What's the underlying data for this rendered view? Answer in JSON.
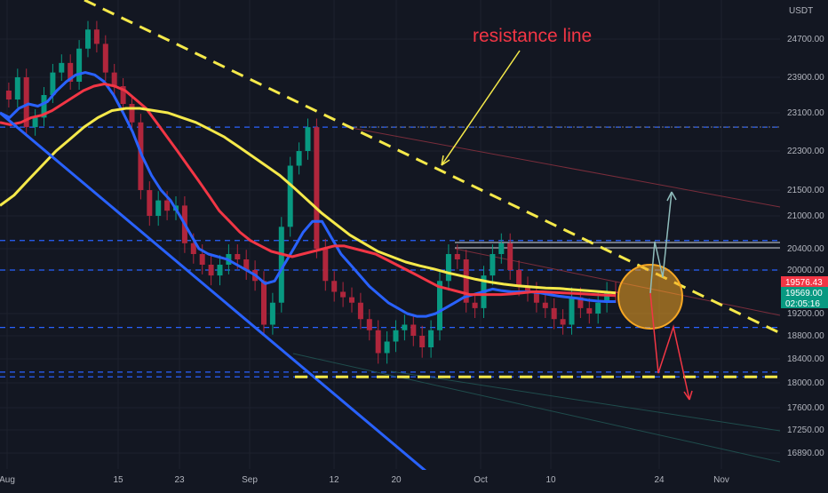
{
  "chart_data": {
    "type": "candlestick",
    "currency_label": "USDT",
    "annotation": {
      "text": "resistance line",
      "color": "#f23645"
    },
    "y_ticks": [
      24700,
      23900,
      23100,
      22300,
      21500,
      21000,
      20400,
      20000,
      19200,
      18800,
      18400,
      18000,
      17600,
      17250,
      16890
    ],
    "y_tick_labels": [
      "24700.00",
      "23900.00",
      "23100.00",
      "22300.00",
      "21500.00",
      "21000.00",
      "20400.00",
      "20000.00",
      "19200.00",
      "18800.00",
      "18400.00",
      "18000.00",
      "17600.00",
      "17250.00",
      "16890.00"
    ],
    "x_ticks": [
      "Aug",
      "15",
      "23",
      "Sep",
      "12",
      "20",
      "Oct",
      "10",
      "24",
      "Nov"
    ],
    "price_badges": [
      {
        "label": "19576.43",
        "value": 19576.43,
        "color": "#f23645"
      },
      {
        "label": "19569.00",
        "value": 19569.0,
        "color": "#089981"
      },
      {
        "label": "02:05:16",
        "value": 19430,
        "color": "#089981"
      }
    ],
    "horizontal_levels": [
      {
        "value": 22800,
        "style": "dashed",
        "color": "#2962ff"
      },
      {
        "value": 20550,
        "style": "dashed",
        "color": "#2962ff"
      },
      {
        "value": 20000,
        "style": "dashed",
        "color": "#2962ff"
      },
      {
        "value": 18950,
        "style": "dashed",
        "color": "#2962ff"
      },
      {
        "value": 18180,
        "style": "dashed",
        "color": "#2962ff"
      },
      {
        "value": 18100,
        "style": "dashed",
        "color": "#2962ff"
      }
    ],
    "price_series": [
      23600,
      23400,
      23900,
      22800,
      23000,
      23500,
      24000,
      24200,
      23800,
      24500,
      24900,
      24600,
      24000,
      23700,
      23300,
      22900,
      21500,
      21000,
      21300,
      21100,
      21200,
      20500,
      20300,
      20100,
      19900,
      20100,
      20300,
      20200,
      20000,
      19800,
      19000,
      19400,
      20800,
      22000,
      22300,
      22800,
      20400,
      19800,
      19600,
      19500,
      19400,
      19100,
      18900,
      18500,
      18700,
      18900,
      19000,
      18800,
      18600,
      18900,
      19800,
      20300,
      20200,
      19400,
      19300,
      19900,
      20300,
      20500,
      20000,
      19700,
      19600,
      19400,
      19300,
      19100,
      19000,
      19500,
      19300,
      19200,
      19400,
      19600,
      19576
    ],
    "moving_averages": [
      {
        "name": "",
        "color": "#2962ff",
        "values": [
          23100,
          23000,
          23200,
          23300,
          23250,
          23350,
          23600,
          23800,
          23950,
          24000,
          23950,
          23800,
          23500,
          23100,
          22700,
          22200,
          21800,
          21500,
          21300,
          21000,
          20700,
          20400,
          20300,
          20250,
          20200,
          20100,
          20000,
          19900,
          19750,
          19800,
          20100,
          20400,
          20700,
          20900,
          20900,
          20600,
          20300,
          20100,
          19900,
          19700,
          19550,
          19400,
          19300,
          19200,
          19150,
          19150,
          19200,
          19300,
          19400,
          19500,
          19550,
          19600,
          19650,
          19620,
          19600,
          19600,
          19600,
          19580,
          19550,
          19520,
          19500,
          19480,
          19450,
          19430,
          19420,
          19420
        ]
      },
      {
        "name": "",
        "color": "#f23645",
        "values": [
          22900,
          22850,
          22900,
          23000,
          23050,
          23150,
          23300,
          23450,
          23600,
          23700,
          23750,
          23700,
          23600,
          23400,
          23200,
          22900,
          22600,
          22300,
          22000,
          21700,
          21400,
          21100,
          20900,
          20700,
          20550,
          20450,
          20350,
          20300,
          20250,
          20300,
          20350,
          20400,
          20450,
          20450,
          20400,
          20350,
          20300,
          20200,
          20100,
          20000,
          19900,
          19800,
          19700,
          19650,
          19600,
          19550,
          19550,
          19550,
          19550,
          19560,
          19580,
          19600,
          19600,
          19590,
          19580,
          19570,
          19560,
          19550,
          19540,
          19530
        ]
      },
      {
        "name": "",
        "color": "#f5e94a",
        "values": [
          21200,
          21400,
          21700,
          22000,
          22300,
          22550,
          22800,
          23000,
          23150,
          23200,
          23200,
          23150,
          23100,
          23000,
          22900,
          22750,
          22600,
          22400,
          22200,
          22000,
          21800,
          21550,
          21300,
          21050,
          20850,
          20650,
          20500,
          20350,
          20250,
          20150,
          20080,
          20020,
          19950,
          19890,
          19830,
          19780,
          19740,
          19710,
          19690,
          19670,
          19660,
          19640,
          19620,
          19600,
          19580
        ]
      }
    ],
    "trend_lines": [
      {
        "from": [
          "Aug-start",
          23100
        ],
        "to": [
          "Sep-25",
          16400
        ],
        "color": "#2962ff",
        "style": "solid"
      },
      {
        "from": [
          "Aug-08",
          25000
        ],
        "to": [
          "Nov-03",
          18850
        ],
        "color": "#f5e94a",
        "style": "dashed"
      },
      {
        "from": [
          "Sep-07",
          18100
        ],
        "to": [
          "Oct-25",
          18100
        ],
        "color": "#f5e94a",
        "style": "dashed"
      }
    ],
    "projection_paths": [
      {
        "color": "#8fbcbb",
        "points": [
          [
            19500
          ],
          [
            20500
          ],
          [
            19900
          ],
          [
            21600
          ]
        ]
      },
      {
        "color": "#f23645",
        "points": [
          [
            19500
          ],
          [
            18100
          ],
          [
            18900
          ],
          [
            17700
          ]
        ]
      }
    ],
    "highlight_circle": {
      "value": 19500,
      "color": "#f5a623"
    },
    "grid": true,
    "legend": "none"
  }
}
